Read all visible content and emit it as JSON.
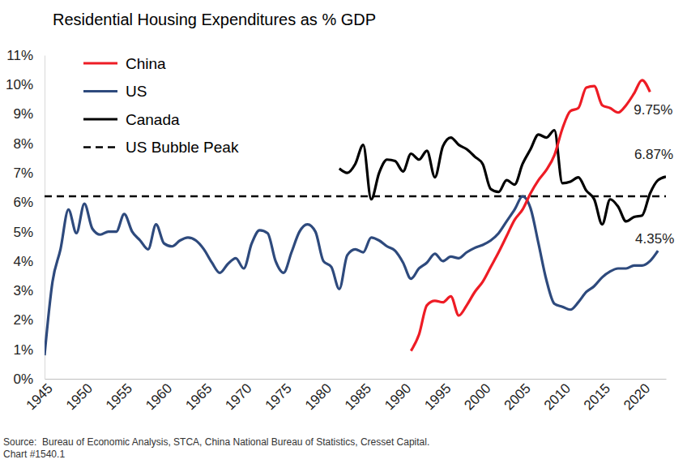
{
  "chart_data": {
    "type": "line",
    "title": "Residential Housing Expenditures as % GDP",
    "footnotes": [
      "Source:  Bureau of Economic Analysis, STCA, China National Bureau of Statistics, Cresset Capital.",
      "Chart #1540.1"
    ],
    "x": [
      1945,
      1946,
      1947,
      1948,
      1949,
      1950,
      1951,
      1952,
      1953,
      1954,
      1955,
      1956,
      1957,
      1958,
      1959,
      1960,
      1961,
      1962,
      1963,
      1964,
      1965,
      1966,
      1967,
      1968,
      1969,
      1970,
      1971,
      1972,
      1973,
      1974,
      1975,
      1976,
      1977,
      1978,
      1979,
      1980,
      1981,
      1982,
      1983,
      1984,
      1985,
      1986,
      1987,
      1988,
      1989,
      1990,
      1991,
      1992,
      1993,
      1994,
      1995,
      1996,
      1997,
      1998,
      1999,
      2000,
      2001,
      2002,
      2003,
      2004,
      2005,
      2006,
      2007,
      2008,
      2009,
      2010,
      2011,
      2012,
      2013,
      2014,
      2015,
      2016,
      2017,
      2018,
      2019,
      2020,
      2021,
      2022,
      2023
    ],
    "series": [
      {
        "name": "China",
        "color": "#ee1c25",
        "line_style": "solid",
        "values": [
          null,
          null,
          null,
          null,
          null,
          null,
          null,
          null,
          null,
          null,
          null,
          null,
          null,
          null,
          null,
          null,
          null,
          null,
          null,
          null,
          null,
          null,
          null,
          null,
          null,
          null,
          null,
          null,
          null,
          null,
          null,
          null,
          null,
          null,
          null,
          null,
          null,
          null,
          null,
          null,
          null,
          null,
          null,
          null,
          null,
          null,
          0.95,
          1.5,
          2.5,
          2.65,
          2.6,
          2.8,
          2.15,
          2.5,
          2.95,
          3.3,
          3.8,
          4.3,
          4.85,
          5.4,
          5.75,
          6.3,
          6.75,
          7.1,
          7.6,
          8.5,
          9.1,
          9.2,
          9.9,
          9.95,
          9.3,
          9.2,
          9.05,
          9.3,
          9.7,
          10.15,
          9.75,
          null,
          null
        ]
      },
      {
        "name": "US",
        "color": "#2e4a7d",
        "line_style": "solid",
        "values": [
          0.8,
          3.3,
          4.4,
          5.75,
          4.95,
          5.95,
          5.1,
          4.9,
          5.0,
          5.0,
          5.6,
          5.0,
          4.7,
          4.4,
          5.25,
          4.6,
          4.5,
          4.7,
          4.8,
          4.7,
          4.4,
          3.95,
          3.6,
          3.9,
          4.1,
          3.75,
          4.6,
          5.05,
          4.95,
          4.0,
          3.6,
          4.3,
          5.0,
          5.25,
          5.0,
          4.0,
          3.8,
          3.05,
          4.2,
          4.4,
          4.3,
          4.8,
          4.7,
          4.5,
          4.35,
          3.95,
          3.4,
          3.75,
          3.95,
          4.25,
          4.0,
          4.15,
          4.1,
          4.3,
          4.45,
          4.55,
          4.7,
          4.95,
          5.35,
          5.75,
          6.2,
          5.8,
          4.6,
          3.35,
          2.55,
          2.45,
          2.35,
          2.6,
          2.95,
          3.15,
          3.45,
          3.65,
          3.75,
          3.75,
          3.85,
          3.85,
          4.0,
          4.35,
          null
        ]
      },
      {
        "name": "Canada",
        "color": "#000000",
        "line_style": "solid",
        "values": [
          null,
          null,
          null,
          null,
          null,
          null,
          null,
          null,
          null,
          null,
          null,
          null,
          null,
          null,
          null,
          null,
          null,
          null,
          null,
          null,
          null,
          null,
          null,
          null,
          null,
          null,
          null,
          null,
          null,
          null,
          null,
          null,
          null,
          null,
          null,
          null,
          null,
          7.15,
          7.0,
          7.3,
          7.95,
          6.1,
          7.0,
          7.45,
          7.4,
          7.05,
          7.65,
          7.45,
          7.75,
          6.85,
          7.9,
          8.2,
          7.95,
          7.8,
          7.55,
          7.3,
          6.45,
          6.35,
          6.75,
          6.6,
          7.3,
          7.8,
          8.3,
          8.2,
          8.45,
          6.65,
          6.7,
          6.85,
          6.4,
          6.1,
          5.25,
          6.1,
          5.85,
          5.35,
          5.5,
          5.55,
          6.3,
          6.75,
          6.87
        ]
      },
      {
        "name": "US Bubble Peak",
        "color": "#000000",
        "line_style": "dashed",
        "values": [
          6.2,
          6.2,
          6.2,
          6.2,
          6.2,
          6.2,
          6.2,
          6.2,
          6.2,
          6.2,
          6.2,
          6.2,
          6.2,
          6.2,
          6.2,
          6.2,
          6.2,
          6.2,
          6.2,
          6.2,
          6.2,
          6.2,
          6.2,
          6.2,
          6.2,
          6.2,
          6.2,
          6.2,
          6.2,
          6.2,
          6.2,
          6.2,
          6.2,
          6.2,
          6.2,
          6.2,
          6.2,
          6.2,
          6.2,
          6.2,
          6.2,
          6.2,
          6.2,
          6.2,
          6.2,
          6.2,
          6.2,
          6.2,
          6.2,
          6.2,
          6.2,
          6.2,
          6.2,
          6.2,
          6.2,
          6.2,
          6.2,
          6.2,
          6.2,
          6.2,
          6.2,
          6.2,
          6.2,
          6.2,
          6.2,
          6.2,
          6.2,
          6.2,
          6.2,
          6.2,
          6.2,
          6.2,
          6.2,
          6.2,
          6.2,
          6.2,
          6.2,
          6.2,
          6.2
        ]
      }
    ],
    "annotations": [
      {
        "text": "9.75%",
        "x": 2021,
        "y": 9.75
      },
      {
        "text": "6.87%",
        "x": 2023,
        "y": 6.87
      },
      {
        "text": "4.35%",
        "x": 2022,
        "y": 4.35
      }
    ],
    "xlim": [
      1945,
      2023
    ],
    "xticks": [
      1945,
      1950,
      1955,
      1960,
      1965,
      1970,
      1975,
      1980,
      1985,
      1990,
      1995,
      2000,
      2005,
      2010,
      2015,
      2020
    ],
    "ylim": [
      0,
      11
    ],
    "yticks": [
      {
        "value": 0,
        "label": "0%"
      },
      {
        "value": 1,
        "label": "1%"
      },
      {
        "value": 2,
        "label": "2%"
      },
      {
        "value": 3,
        "label": "3%"
      },
      {
        "value": 4,
        "label": "4%"
      },
      {
        "value": 5,
        "label": "5%"
      },
      {
        "value": 6,
        "label": "6%"
      },
      {
        "value": 7,
        "label": "7%"
      },
      {
        "value": 8,
        "label": "8%"
      },
      {
        "value": 9,
        "label": "9%"
      },
      {
        "value": 10,
        "label": "10%"
      },
      {
        "value": 11,
        "label": "11%"
      }
    ],
    "grid": false,
    "legend": "upper left"
  }
}
